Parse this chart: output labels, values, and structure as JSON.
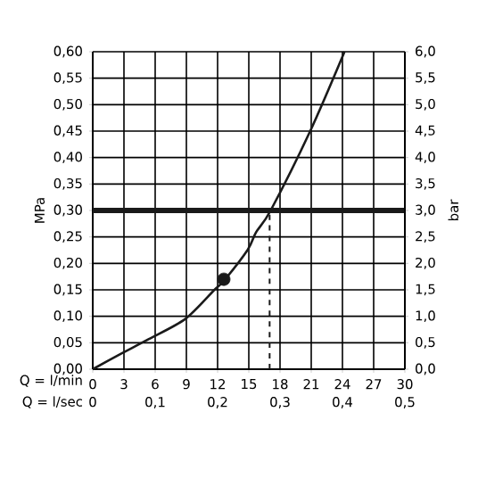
{
  "chart_data": {
    "type": "line",
    "xlabel": "Q = l/min",
    "ylabel": "MPa",
    "y2label": "bar",
    "x2label": "Q = l/sec",
    "x": [
      0,
      2.6,
      5.4,
      8.9,
      11.7,
      12.6,
      14.9,
      15.7,
      17.1,
      20.9,
      24.2
    ],
    "series": [
      {
        "color": "#1a1a1a",
        "marker": "none",
        "values": [
          0,
          0.028,
          0.057,
          0.095,
          0.15,
          0.167,
          0.226,
          0.259,
          0.3,
          0.45,
          0.6
        ]
      },
      {
        "type": "scatter",
        "color": "#1a1a1a",
        "x": [
          12.6
        ],
        "values": [
          0.17
        ]
      }
    ],
    "xlim": [
      0,
      30
    ],
    "xticks": [
      0,
      3,
      6,
      9,
      12,
      15,
      18,
      21,
      24,
      27,
      30
    ],
    "ylim": [
      0,
      0.6
    ],
    "yticks": [
      {
        "value": 0,
        "label": "0,00"
      },
      {
        "value": 0.05,
        "label": "0,05"
      },
      {
        "value": 0.1,
        "label": "0,10"
      },
      {
        "value": 0.15,
        "label": "0,15"
      },
      {
        "value": 0.2,
        "label": "0,20"
      },
      {
        "value": 0.25,
        "label": "0,25"
      },
      {
        "value": 0.3,
        "label": "0,30"
      },
      {
        "value": 0.35,
        "label": "0,35"
      },
      {
        "value": 0.4,
        "label": "0,40"
      },
      {
        "value": 0.45,
        "label": "0,45"
      },
      {
        "value": 0.5,
        "label": "0,50"
      },
      {
        "value": 0.55,
        "label": "0,55"
      },
      {
        "value": 0.6,
        "label": "0,60"
      }
    ],
    "y2lim": [
      0,
      6
    ],
    "y2ticks": [
      {
        "value": 0,
        "label": "0,0"
      },
      {
        "value": 0.5,
        "label": "0,5"
      },
      {
        "value": 1,
        "label": "1,0"
      },
      {
        "value": 1.5,
        "label": "1,5"
      },
      {
        "value": 2,
        "label": "2,0"
      },
      {
        "value": 2.5,
        "label": "2,5"
      },
      {
        "value": 3,
        "label": "3,0"
      },
      {
        "value": 3.5,
        "label": "3,5"
      },
      {
        "value": 4,
        "label": "4,0"
      },
      {
        "value": 4.5,
        "label": "4,5"
      },
      {
        "value": 5,
        "label": "5,0"
      },
      {
        "value": 5.5,
        "label": "5,5"
      },
      {
        "value": 6,
        "label": "6,0"
      }
    ],
    "x2lim": [
      0,
      0.5
    ],
    "x2ticks": [
      0,
      {
        "value": 0.1,
        "label": "0,1"
      },
      {
        "value": 0.2,
        "label": "0,2"
      },
      {
        "value": 0.3,
        "label": "0,3"
      },
      {
        "value": 0.4,
        "label": "0,4"
      },
      {
        "value": 0.5,
        "label": "0,5"
      }
    ],
    "ref_lines": [
      {
        "axis": "y",
        "value": 0.3,
        "color": "#1a1a1a",
        "line_style": "solid"
      },
      {
        "axis": "x",
        "value": 17,
        "color": "#1a1a1a",
        "line_style": "dashed"
      }
    ],
    "grid": true,
    "marker": "circle",
    "line_style": "solid"
  }
}
